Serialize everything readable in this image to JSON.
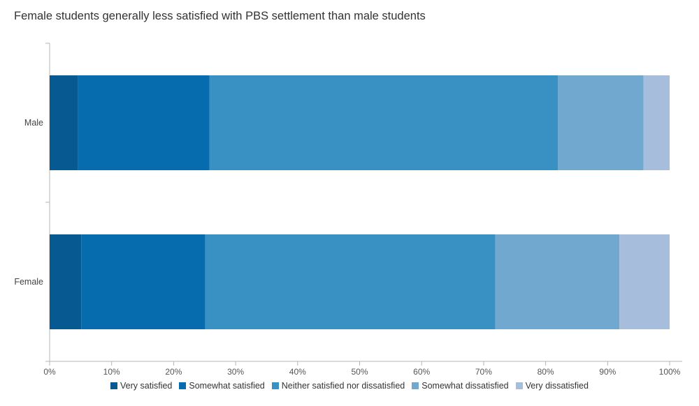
{
  "chart_data": {
    "type": "bar",
    "orientation": "horizontal",
    "stacked": true,
    "title": "Female students generally less satisfied with PBS settlement than male students",
    "xlabel": "",
    "ylabel": "",
    "xlim": [
      0,
      100
    ],
    "x_ticks": [
      "0%",
      "10%",
      "20%",
      "30%",
      "40%",
      "50%",
      "60%",
      "70%",
      "80%",
      "90%",
      "100%"
    ],
    "categories": [
      "Male",
      "Female"
    ],
    "series": [
      {
        "name": "Very satisfied",
        "color": "#065a91",
        "values": [
          4.6,
          5.1
        ]
      },
      {
        "name": "Somewhat satisfied",
        "color": "#076cae",
        "values": [
          21.2,
          20.0
        ]
      },
      {
        "name": "Neither satisfied nor dissatisfied",
        "color": "#3891c2",
        "values": [
          56.2,
          46.8
        ]
      },
      {
        "name": "Somewhat dissatisfied",
        "color": "#71a8cf",
        "values": [
          13.8,
          20.0
        ]
      },
      {
        "name": "Very dissatisfied",
        "color": "#a7bddc",
        "values": [
          4.2,
          8.1
        ]
      }
    ],
    "legend_position": "bottom",
    "grid": false
  }
}
